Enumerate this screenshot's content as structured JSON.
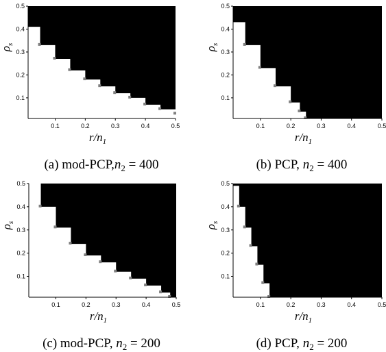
{
  "chart_data": [
    {
      "type": "heatmap",
      "caption": "(a) mod-PCP,n₂ = 400",
      "xlabel": "r/n₁",
      "ylabel": "ρₛ",
      "xlim": [
        0.01,
        0.5
      ],
      "ylim": [
        0.01,
        0.5
      ],
      "xticks": [
        "0.1",
        "0.2",
        "0.3",
        "0.4",
        "0.5"
      ],
      "yticks": [
        "0.1",
        "0.2",
        "0.3",
        "0.4",
        "0.5"
      ],
      "region_colors": {
        "success": "#ffffff",
        "failure": "#000000"
      },
      "boundary": [
        [
          0.01,
          0.41
        ],
        [
          0.05,
          0.33
        ],
        [
          0.1,
          0.27
        ],
        [
          0.15,
          0.22
        ],
        [
          0.2,
          0.18
        ],
        [
          0.25,
          0.15
        ],
        [
          0.3,
          0.12
        ],
        [
          0.35,
          0.1
        ],
        [
          0.4,
          0.07
        ],
        [
          0.45,
          0.05
        ],
        [
          0.5,
          0.03
        ]
      ]
    },
    {
      "type": "heatmap",
      "caption": "(b) PCP, n₂ = 400",
      "xlabel": "r/n₁",
      "ylabel": "ρₛ",
      "xlim": [
        0.01,
        0.5
      ],
      "ylim": [
        0.01,
        0.5
      ],
      "xticks": [
        "0.1",
        "0.2",
        "0.3",
        "0.4",
        "0.5"
      ],
      "yticks": [
        "0.1",
        "0.2",
        "0.3",
        "0.4",
        "0.5"
      ],
      "region_colors": {
        "success": "#ffffff",
        "failure": "#000000"
      },
      "boundary": [
        [
          0.01,
          0.43
        ],
        [
          0.05,
          0.33
        ],
        [
          0.1,
          0.23
        ],
        [
          0.15,
          0.15
        ],
        [
          0.2,
          0.08
        ],
        [
          0.23,
          0.04
        ],
        [
          0.25,
          0.01
        ]
      ]
    },
    {
      "type": "heatmap",
      "caption": "(c) mod-PCP, n₂ = 200",
      "xlabel": "r/n₁",
      "ylabel": "ρₛ",
      "xlim": [
        0.01,
        0.5
      ],
      "ylim": [
        0.01,
        0.5
      ],
      "xticks": [
        "0.1",
        "0.2",
        "0.3",
        "0.4",
        "0.5"
      ],
      "yticks": [
        "0.1",
        "0.2",
        "0.3",
        "0.4",
        "0.5"
      ],
      "region_colors": {
        "success": "#ffffff",
        "failure": "#000000"
      },
      "boundary": [
        [
          0.01,
          0.5
        ],
        [
          0.05,
          0.4
        ],
        [
          0.1,
          0.31
        ],
        [
          0.15,
          0.24
        ],
        [
          0.2,
          0.19
        ],
        [
          0.25,
          0.16
        ],
        [
          0.3,
          0.12
        ],
        [
          0.35,
          0.09
        ],
        [
          0.4,
          0.06
        ],
        [
          0.45,
          0.03
        ],
        [
          0.48,
          0.01
        ]
      ]
    },
    {
      "type": "heatmap",
      "caption": "(d) PCP, n₂ = 200",
      "xlabel": "r/n₁",
      "ylabel": "ρₛ",
      "xlim": [
        0.01,
        0.5
      ],
      "ylim": [
        0.01,
        0.5
      ],
      "xticks": [
        "0.1",
        "0.2",
        "0.3",
        "0.4",
        "0.5"
      ],
      "yticks": [
        "0.1",
        "0.2",
        "0.3",
        "0.4",
        "0.5"
      ],
      "region_colors": {
        "success": "#ffffff",
        "failure": "#000000"
      },
      "boundary": [
        [
          0.01,
          0.49
        ],
        [
          0.03,
          0.4
        ],
        [
          0.05,
          0.31
        ],
        [
          0.07,
          0.23
        ],
        [
          0.09,
          0.15
        ],
        [
          0.11,
          0.07
        ],
        [
          0.13,
          0.01
        ]
      ]
    }
  ]
}
